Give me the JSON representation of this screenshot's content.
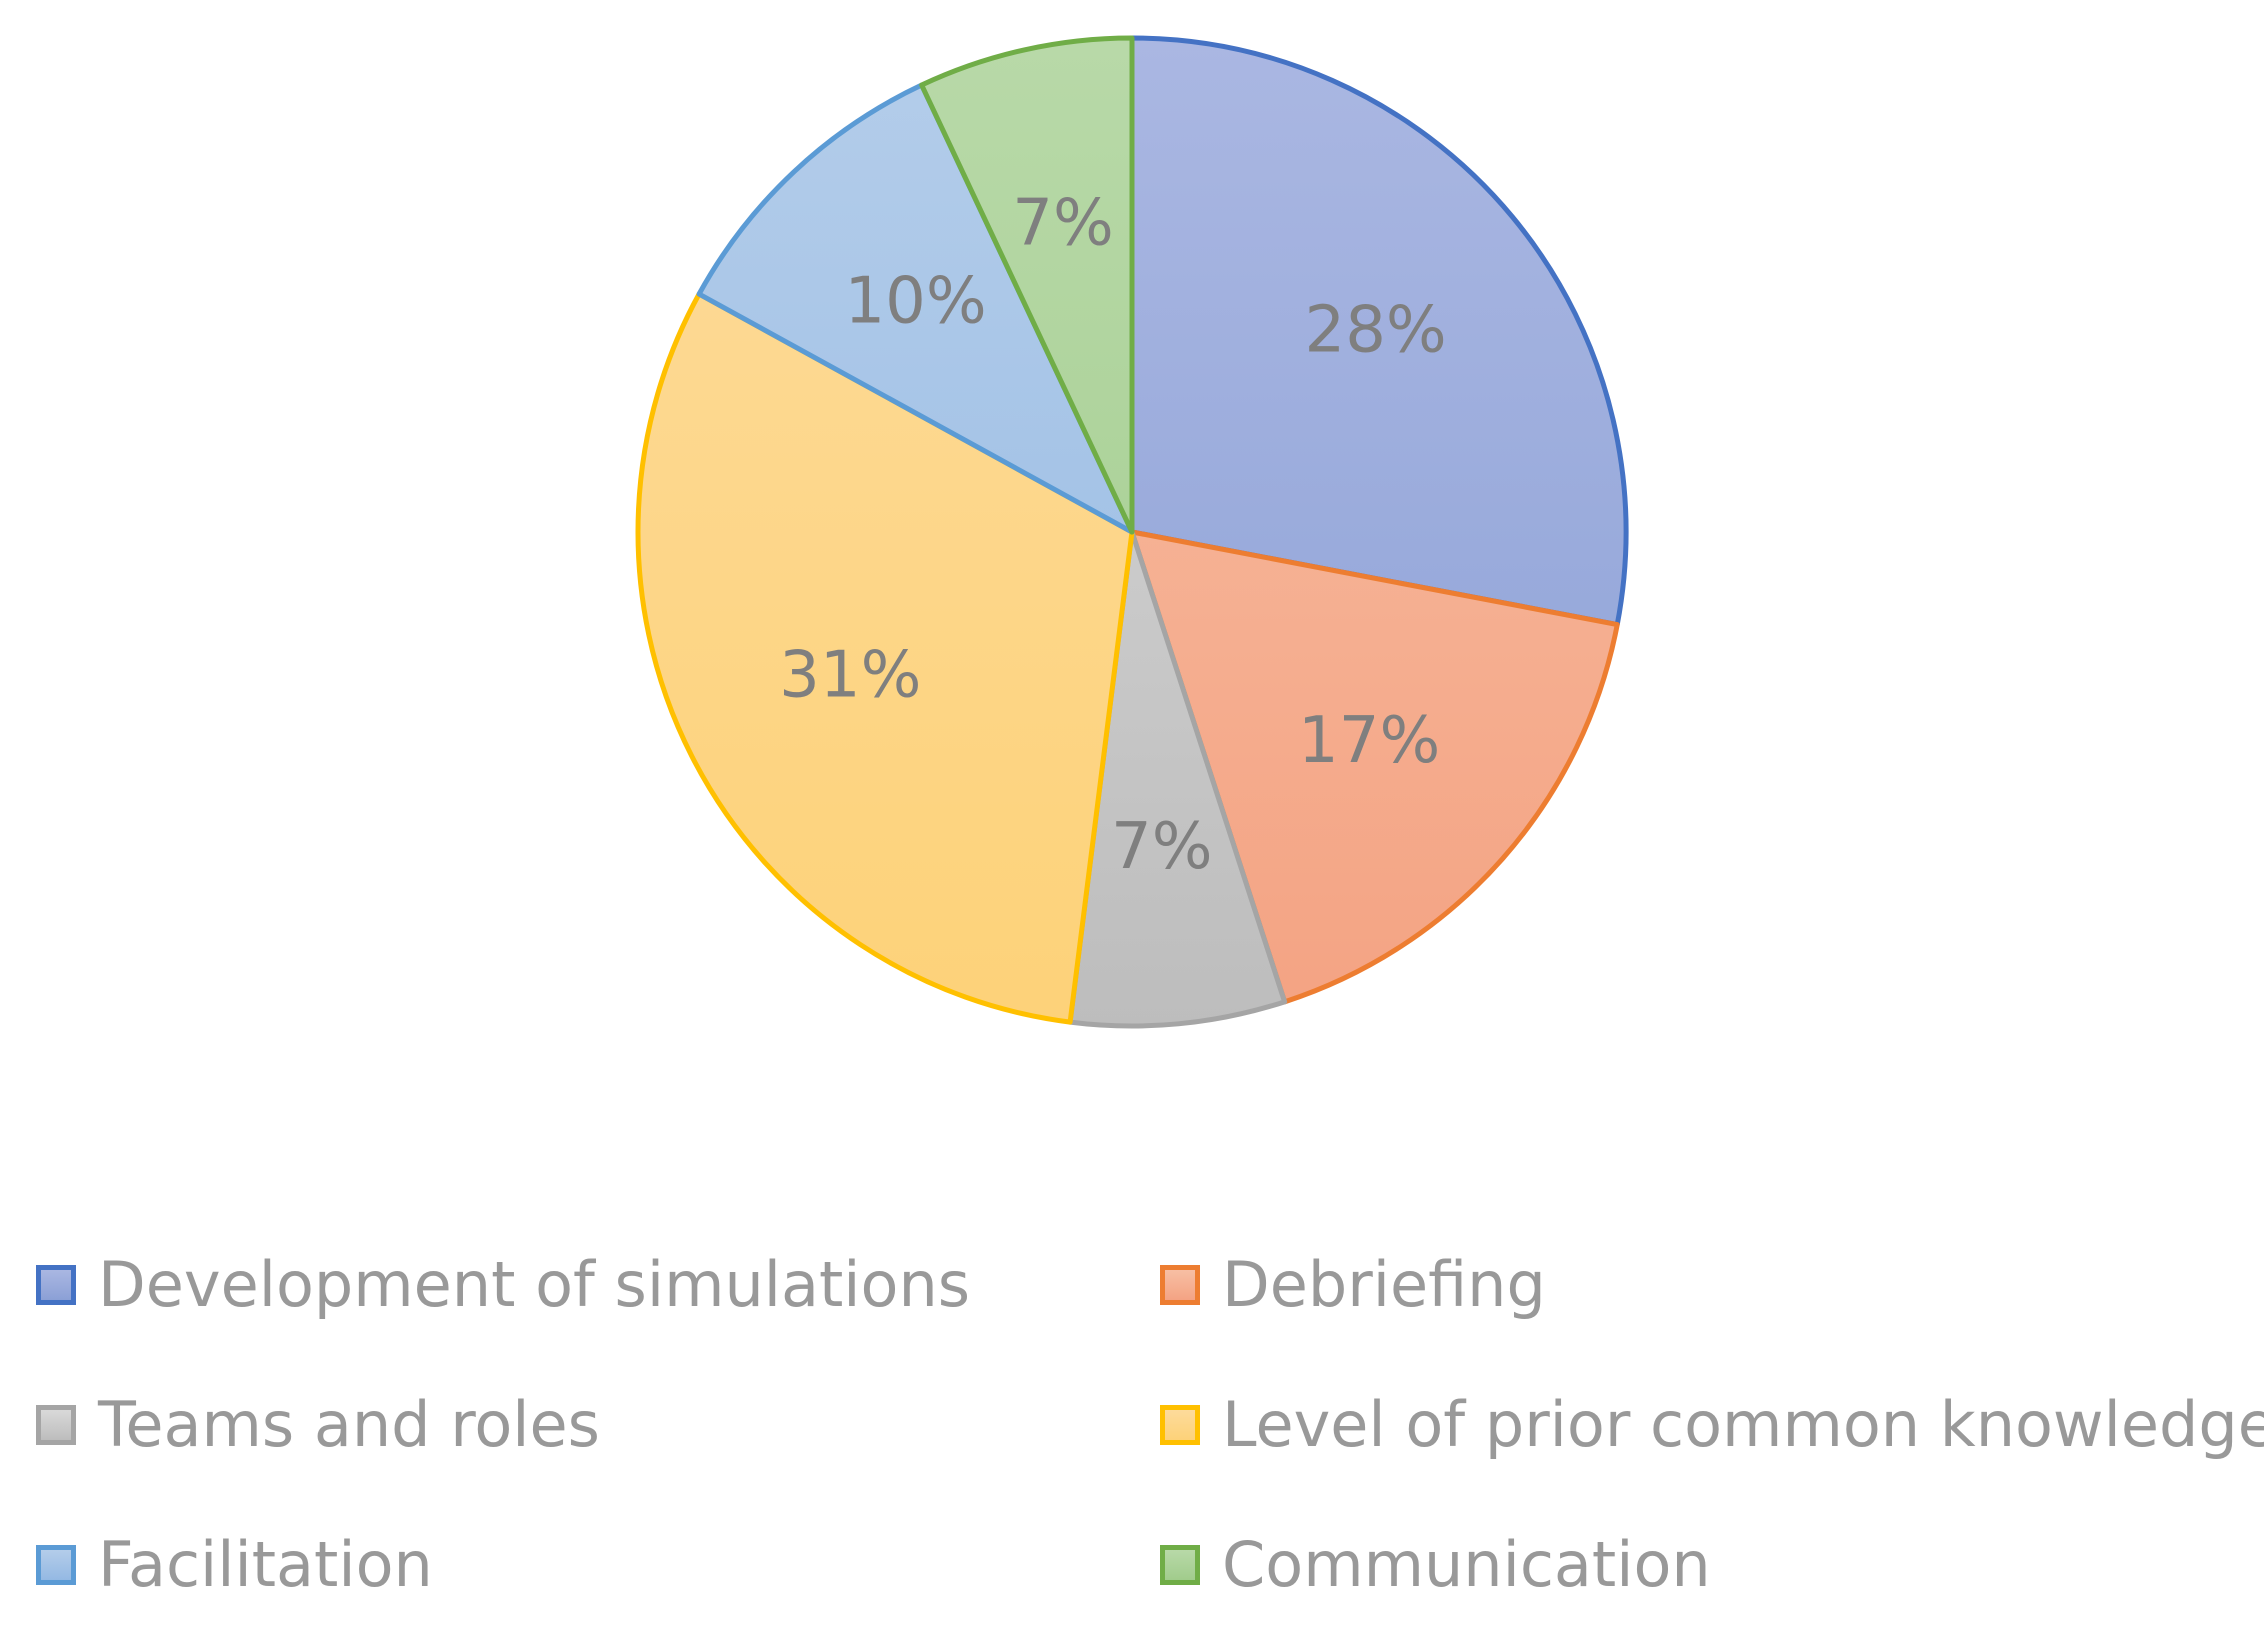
{
  "chart_data": {
    "type": "pie",
    "title": "",
    "categories": [
      "Development of simulations",
      "Debriefing",
      "Teams and roles",
      "Level of prior common knowledge",
      "Facilitation",
      "Communication"
    ],
    "values": [
      28,
      17,
      7,
      31,
      10,
      7
    ],
    "data_labels": [
      "28%",
      "17%",
      "7%",
      "31%",
      "10%",
      "7%"
    ],
    "start_angle_deg": 0,
    "direction": "clockwise",
    "legend_position": "bottom",
    "label_color": "#7f7f7f",
    "slices": [
      {
        "name": "Development of simulations",
        "fill_top": "#aab7e2",
        "fill_bottom": "#8ba0d6",
        "stroke": "#4472c4"
      },
      {
        "name": "Debriefing",
        "fill_top": "#f7bfa4",
        "fill_bottom": "#f4a383",
        "stroke": "#ed7d31"
      },
      {
        "name": "Teams and roles",
        "fill_top": "#d9d9d9",
        "fill_bottom": "#bdbdbd",
        "stroke": "#a5a5a5"
      },
      {
        "name": "Level of prior common knowledge",
        "fill_top": "#fddb9b",
        "fill_bottom": "#fdd279",
        "stroke": "#ffc000"
      },
      {
        "name": "Facilitation",
        "fill_top": "#b4cdea",
        "fill_bottom": "#94b9e3",
        "stroke": "#5b9bd5"
      },
      {
        "name": "Communication",
        "fill_top": "#b8d9a8",
        "fill_bottom": "#a1cc8c",
        "stroke": "#70ad47"
      }
    ]
  }
}
